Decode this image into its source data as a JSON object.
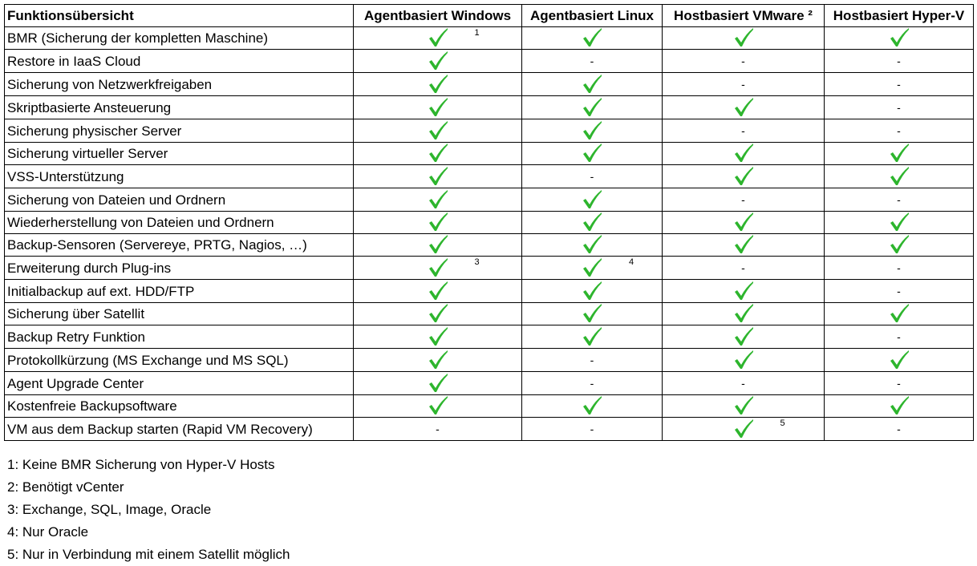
{
  "table": {
    "headers": [
      "Funktionsübersicht",
      "Agentbasiert Windows",
      "Agentbasiert Linux",
      "Hostbasiert VMware ²",
      "Hostbasiert Hyper-V"
    ],
    "check_color": "#2db52d",
    "rows": [
      {
        "label": "BMR (Sicherung der kompletten Maschine)",
        "cells": [
          {
            "v": "check",
            "sup": "1"
          },
          {
            "v": "check"
          },
          {
            "v": "check"
          },
          {
            "v": "check"
          }
        ]
      },
      {
        "label": "Restore in IaaS Cloud",
        "cells": [
          {
            "v": "check"
          },
          {
            "v": "-"
          },
          {
            "v": "-"
          },
          {
            "v": "-"
          }
        ]
      },
      {
        "label": "Sicherung von Netzwerkfreigaben",
        "cells": [
          {
            "v": "check"
          },
          {
            "v": "check"
          },
          {
            "v": "-"
          },
          {
            "v": "-"
          }
        ]
      },
      {
        "label": "Skriptbasierte Ansteuerung",
        "cells": [
          {
            "v": "check"
          },
          {
            "v": "check"
          },
          {
            "v": "check"
          },
          {
            "v": "-"
          }
        ]
      },
      {
        "label": "Sicherung physischer Server",
        "cells": [
          {
            "v": "check"
          },
          {
            "v": "check"
          },
          {
            "v": "-"
          },
          {
            "v": "-"
          }
        ]
      },
      {
        "label": "Sicherung virtueller Server",
        "cells": [
          {
            "v": "check"
          },
          {
            "v": "check"
          },
          {
            "v": "check"
          },
          {
            "v": "check"
          }
        ]
      },
      {
        "label": "VSS-Unterstützung",
        "cells": [
          {
            "v": "check"
          },
          {
            "v": "-"
          },
          {
            "v": "check"
          },
          {
            "v": "check"
          }
        ]
      },
      {
        "label": "Sicherung von Dateien und Ordnern",
        "cells": [
          {
            "v": "check"
          },
          {
            "v": "check"
          },
          {
            "v": "-"
          },
          {
            "v": "-"
          }
        ]
      },
      {
        "label": "Wiederherstellung von Dateien und Ordnern",
        "cells": [
          {
            "v": "check"
          },
          {
            "v": "check"
          },
          {
            "v": "check"
          },
          {
            "v": "check"
          }
        ]
      },
      {
        "label": "Backup-Sensoren (Servereye, PRTG, Nagios, …)",
        "cells": [
          {
            "v": "check"
          },
          {
            "v": "check"
          },
          {
            "v": "check"
          },
          {
            "v": "check"
          }
        ]
      },
      {
        "label": "Erweiterung durch Plug-ins",
        "cells": [
          {
            "v": "check",
            "sup": "3"
          },
          {
            "v": "check",
            "sup": "4"
          },
          {
            "v": "-"
          },
          {
            "v": "-"
          }
        ]
      },
      {
        "label": "Initialbackup auf ext. HDD/FTP",
        "cells": [
          {
            "v": "check"
          },
          {
            "v": "check"
          },
          {
            "v": "check"
          },
          {
            "v": "-"
          }
        ]
      },
      {
        "label": "Sicherung über Satellit",
        "cells": [
          {
            "v": "check"
          },
          {
            "v": "check"
          },
          {
            "v": "check"
          },
          {
            "v": "check"
          }
        ]
      },
      {
        "label": "Backup Retry Funktion",
        "cells": [
          {
            "v": "check"
          },
          {
            "v": "check"
          },
          {
            "v": "check"
          },
          {
            "v": "-"
          }
        ]
      },
      {
        "label": "Protokollkürzung (MS Exchange und MS SQL)",
        "cells": [
          {
            "v": "check"
          },
          {
            "v": "-"
          },
          {
            "v": "check"
          },
          {
            "v": "check"
          }
        ]
      },
      {
        "label": "Agent Upgrade Center",
        "cells": [
          {
            "v": "check"
          },
          {
            "v": "-"
          },
          {
            "v": "-"
          },
          {
            "v": "-"
          }
        ]
      },
      {
        "label": "Kostenfreie Backupsoftware",
        "cells": [
          {
            "v": "check"
          },
          {
            "v": "check"
          },
          {
            "v": "check"
          },
          {
            "v": "check"
          }
        ]
      },
      {
        "label": "VM aus dem Backup starten (Rapid VM Recovery)",
        "cells": [
          {
            "v": "-"
          },
          {
            "v": "-"
          },
          {
            "v": "check",
            "sup": "5"
          },
          {
            "v": "-"
          }
        ]
      }
    ]
  },
  "footnotes": [
    "1: Keine BMR Sicherung von Hyper-V Hosts",
    "2: Benötigt vCenter",
    "3: Exchange, SQL, Image, Oracle",
    "4: Nur Oracle",
    "5: Nur in Verbindung mit einem Satellit möglich"
  ]
}
